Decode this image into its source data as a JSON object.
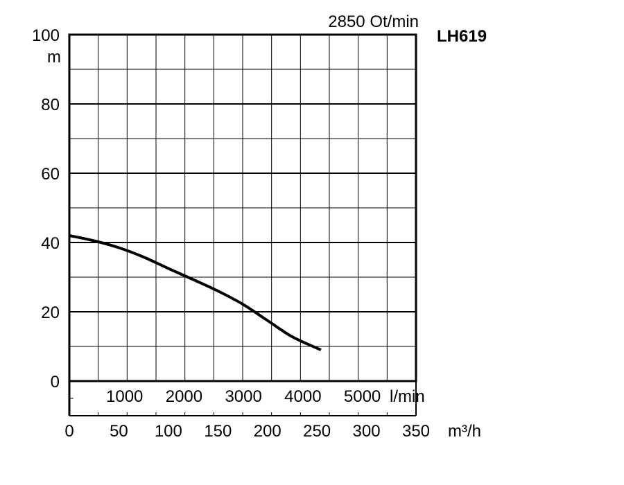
{
  "chart_data": {
    "type": "line",
    "title": "LH619",
    "speed_label": "2850 Ot/min",
    "ylabel": "m",
    "xlabel": "m³/h",
    "x2label": "l/min",
    "ylim": [
      0,
      100
    ],
    "y_ticks": [
      "0",
      "20",
      "40",
      "60",
      "80",
      "100"
    ],
    "xlim": [
      0,
      350
    ],
    "x_ticks": [
      "0",
      "50",
      "100",
      "150",
      "200",
      "250",
      "300",
      "350"
    ],
    "x2_ticks": [
      "1000",
      "2000",
      "3000",
      "4000",
      "5000"
    ],
    "grid": true,
    "series": [
      {
        "x": [
          0,
          25,
          50,
          75,
          100,
          125,
          150,
          175,
          200,
          225,
          254
        ],
        "y": [
          42,
          40.5,
          38.5,
          35.8,
          32.5,
          29.3,
          26,
          22.2,
          17.5,
          12.8,
          9
        ]
      }
    ],
    "colors": {
      "line": "#000000",
      "grid": "#000000"
    }
  }
}
